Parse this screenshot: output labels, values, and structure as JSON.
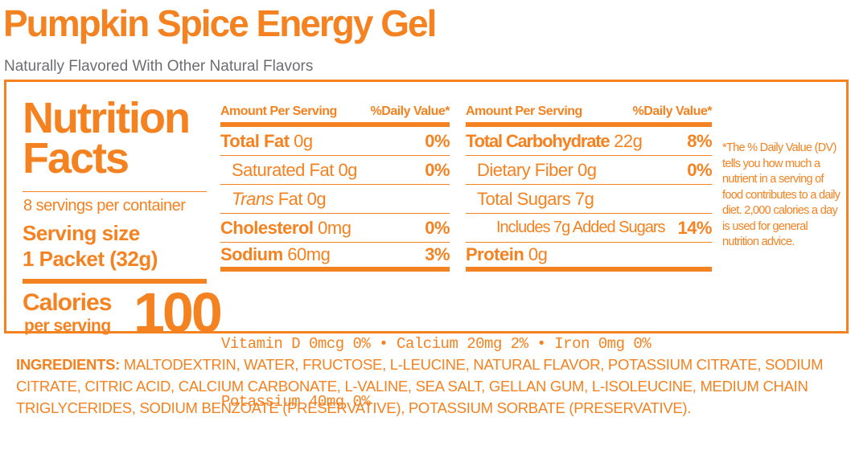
{
  "header": {
    "title": "Pumpkin Spice Energy Gel",
    "subtitle": "Naturally Flavored With Other Natural Flavors"
  },
  "facts": {
    "title_line1": "Nutrition",
    "title_line2": "Facts",
    "servings_per_container": "8 servings per container",
    "serving_size_label": "Serving size",
    "serving_size_value": "1 Packet (32g)",
    "calories_label": "Calories",
    "calories_sub": "per serving",
    "calories_value": "100"
  },
  "left_table": {
    "head_amount": "Amount Per Serving",
    "head_dv": "%Daily Value*",
    "rows": [
      {
        "name": "Total Fat",
        "amount": "0g",
        "dv": "0%"
      },
      {
        "name": "Saturated Fat",
        "amount": "0g",
        "dv": "0%"
      },
      {
        "name": "Trans",
        "name_rest": "Fat",
        "amount": "0g",
        "dv": ""
      },
      {
        "name": "Cholesterol",
        "amount": "0mg",
        "dv": "0%"
      },
      {
        "name": "Sodium",
        "amount": "60mg",
        "dv": "3%"
      }
    ]
  },
  "right_table": {
    "head_amount": "Amount Per Serving",
    "head_dv": "%Daily Value*",
    "rows": [
      {
        "name": "Total Carbohydrate",
        "amount": "22g",
        "dv": "8%"
      },
      {
        "name": "Dietary Fiber",
        "amount": "0g",
        "dv": "0%"
      },
      {
        "name": "Total Sugars",
        "amount": "7g",
        "dv": ""
      },
      {
        "name": "Includes 7g Added Sugars",
        "amount": "",
        "dv": "14%"
      },
      {
        "name": "Protein",
        "amount": "0g",
        "dv": ""
      }
    ]
  },
  "vitamins": {
    "line1": "Vitamin D 0mcg 0% • Calcium 20mg 2% • Iron 0mg 0%",
    "line2": "Potassium 40mg 0%"
  },
  "dv_note": "*The % Daily Value (DV) tells you how much a nutrient in a serving of food contributes to a daily diet. 2,000 calories a day is used for general nutrition advice.",
  "ingredients": {
    "label": "INGREDIENTS:",
    "text": "MALTODEXTRIN, WATER, FRUCTOSE, L-LEUCINE, NATURAL FLAVOR, POTASSIUM CITRATE, SODIUM CITRATE, CITRIC ACID, CALCIUM CARBONATE, L-VALINE, SEA SALT, GELLAN GUM, L-ISOLEUCINE, MEDIUM CHAIN TRIGLYCERIDES, SODIUM BENZOATE (PRESERVATIVE), POTASSIUM SORBATE (PRESERVATIVE)."
  },
  "colors": {
    "accent": "#f58220",
    "subtitle": "#6d6e71"
  }
}
